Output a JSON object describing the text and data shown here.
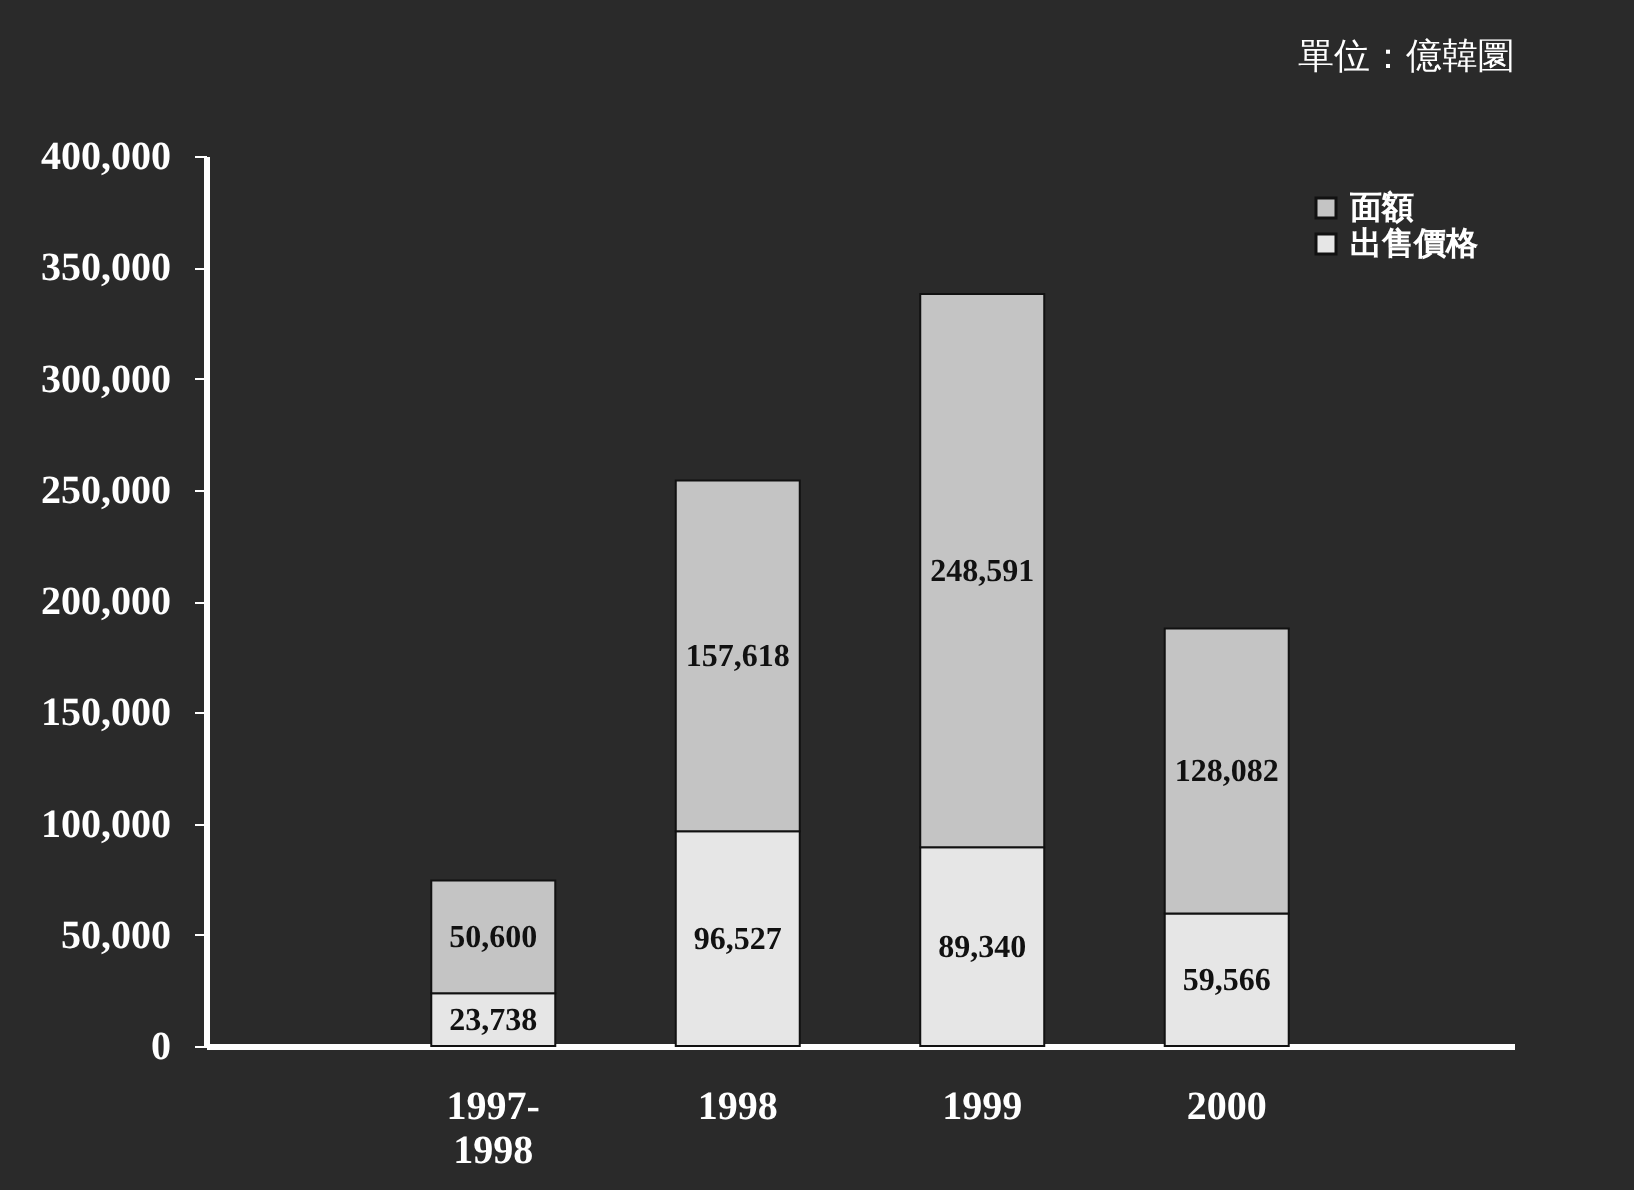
{
  "chart_data": {
    "type": "bar",
    "stacked": true,
    "categories": [
      "1997-\n1998",
      "1998",
      "1999",
      "2000"
    ],
    "series": [
      {
        "name": "出售價格",
        "color": "#e6e6e6",
        "values": [
          23738,
          96527,
          89340,
          59566
        ],
        "value_labels": [
          "23,738",
          "96,527",
          "89,340",
          "59,566"
        ]
      },
      {
        "name": "面額",
        "color": "#c4c4c4",
        "values": [
          50600,
          157618,
          248591,
          128082
        ],
        "value_labels": [
          "50,600",
          "157,618",
          "248,591",
          "128,082"
        ]
      }
    ],
    "ylim": [
      0,
      400000
    ],
    "yticks": [
      0,
      {
        "value": 50000,
        "label": "50,000"
      },
      {
        "value": 100000,
        "label": "100,000"
      },
      {
        "value": 150000,
        "label": "150,000"
      },
      {
        "value": 200000,
        "label": "200,000"
      },
      {
        "value": 250000,
        "label": "250,000"
      },
      {
        "value": 300000,
        "label": "300,000"
      },
      {
        "value": 350000,
        "label": "350,000"
      },
      {
        "value": 400000,
        "label": "400,000"
      }
    ],
    "grid": false,
    "legend": "top right",
    "annotations": [
      "單位：億韓圜"
    ]
  }
}
